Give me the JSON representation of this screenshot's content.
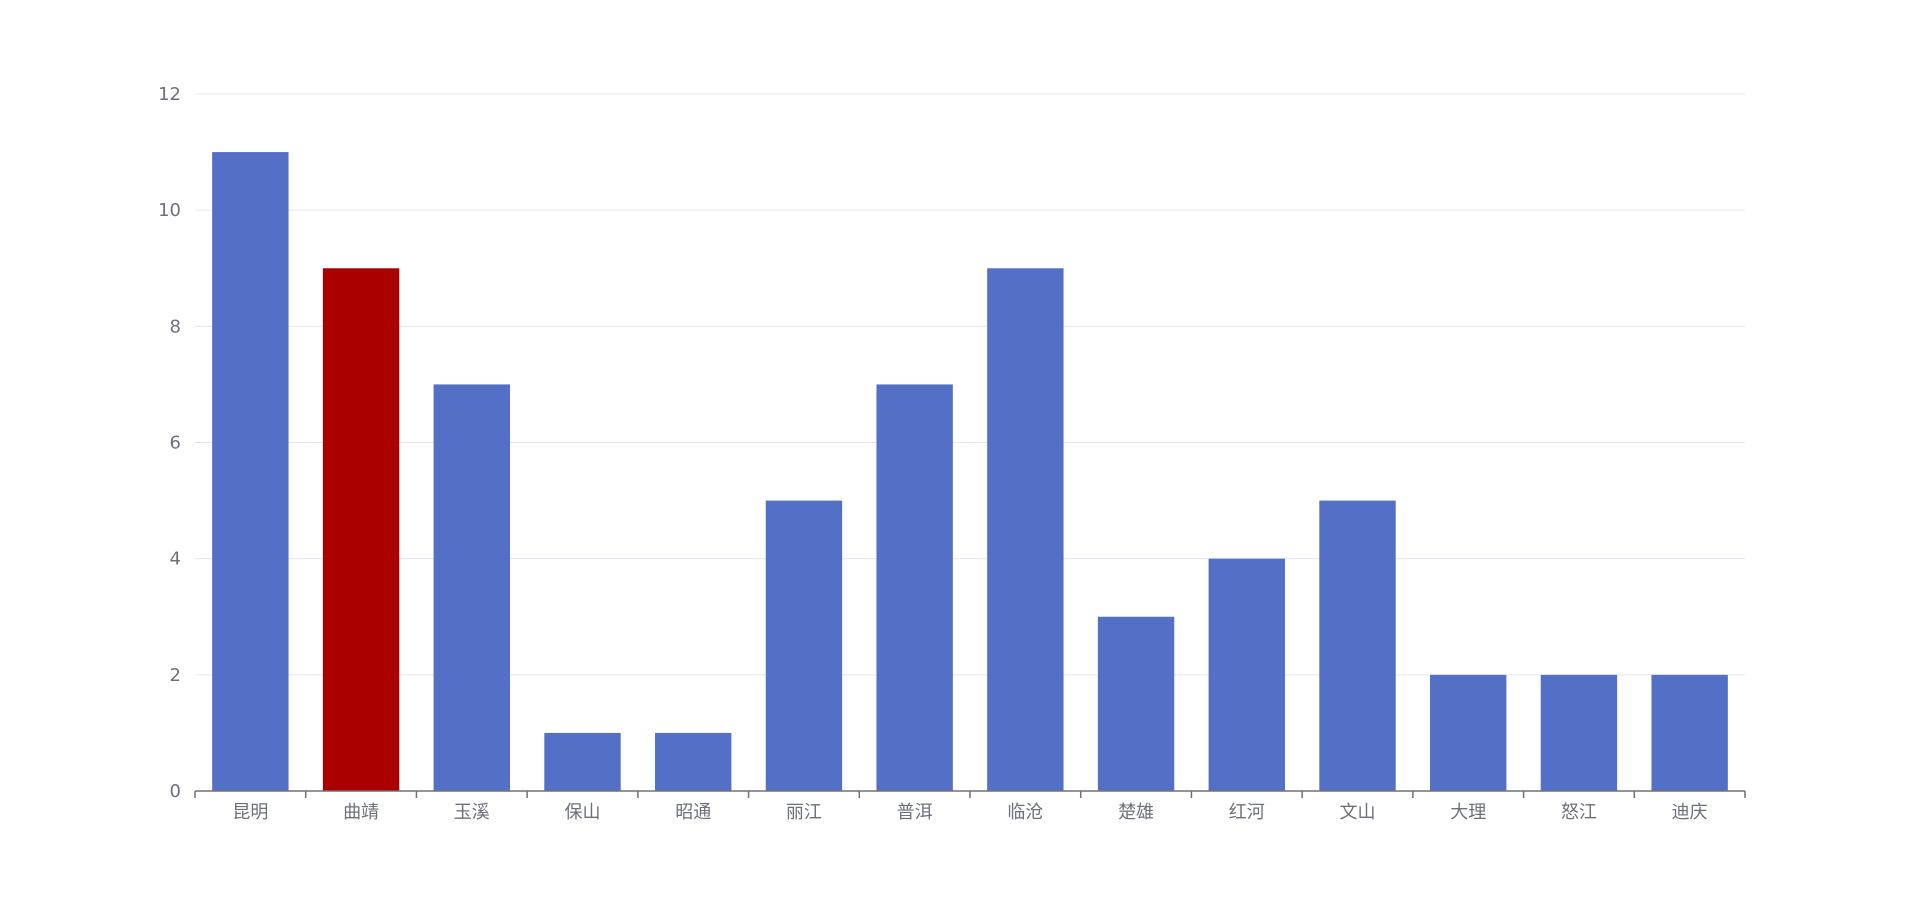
{
  "colors": {
    "bar_default": "#5470c6",
    "bar_highlight": "#aa0000",
    "grid_line": "#e0e6f1",
    "axis_line": "#6e7079",
    "tick_text": "#6e7079"
  },
  "chart_data": {
    "type": "bar",
    "categories": [
      "昆明",
      "曲靖",
      "玉溪",
      "保山",
      "昭通",
      "丽江",
      "普洱",
      "临沧",
      "楚雄",
      "红河",
      "文山",
      "大理",
      "怒江",
      "迪庆"
    ],
    "values": [
      11,
      9,
      7,
      1,
      1,
      5,
      7,
      9,
      3,
      4,
      5,
      2,
      2,
      2
    ],
    "highlight_index": 1,
    "y_ticks": [
      "0",
      "2",
      "4",
      "6",
      "8",
      "10",
      "12"
    ],
    "ylim": [
      0,
      12
    ],
    "grid": true,
    "legend": "none"
  }
}
